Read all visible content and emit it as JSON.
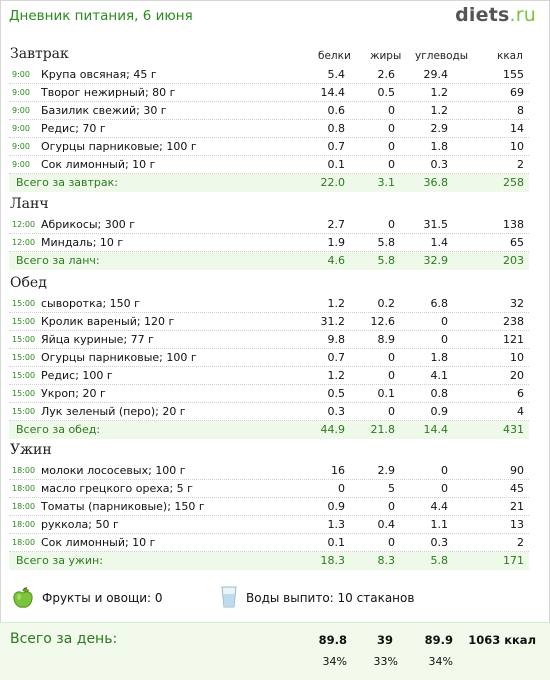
{
  "header": {
    "title": "Дневник питания, 6 июня",
    "logo_main": "diets",
    "logo_tld": ".ru"
  },
  "columns": {
    "protein": "белки",
    "fat": "жиры",
    "carbs": "углеводы",
    "kcal": "ккал"
  },
  "meals": [
    {
      "title": "Завтрак",
      "items": [
        {
          "time": "9:00",
          "name": "Крупа овсяная; 45 г",
          "protein": "5.4",
          "fat": "2.6",
          "carbs": "29.4",
          "kcal": "155"
        },
        {
          "time": "9:00",
          "name": "Творог нежирный; 80 г",
          "protein": "14.4",
          "fat": "0.5",
          "carbs": "1.2",
          "kcal": "69"
        },
        {
          "time": "9:00",
          "name": "Базилик свежий; 30 г",
          "protein": "0.6",
          "fat": "0",
          "carbs": "1.2",
          "kcal": "8"
        },
        {
          "time": "9:00",
          "name": "Редис; 70 г",
          "protein": "0.8",
          "fat": "0",
          "carbs": "2.9",
          "kcal": "14"
        },
        {
          "time": "9:00",
          "name": "Огурцы парниковые; 100 г",
          "protein": "0.7",
          "fat": "0",
          "carbs": "1.8",
          "kcal": "10"
        },
        {
          "time": "9:00",
          "name": "Сок лимонный; 10 г",
          "protein": "0.1",
          "fat": "0",
          "carbs": "0.3",
          "kcal": "2"
        }
      ],
      "total": {
        "label": "Всего за завтрак:",
        "protein": "22.0",
        "fat": "3.1",
        "carbs": "36.8",
        "kcal": "258"
      }
    },
    {
      "title": "Ланч",
      "items": [
        {
          "time": "12:00",
          "name": "Абрикосы; 300 г",
          "protein": "2.7",
          "fat": "0",
          "carbs": "31.5",
          "kcal": "138"
        },
        {
          "time": "12:00",
          "name": "Миндаль; 10 г",
          "protein": "1.9",
          "fat": "5.8",
          "carbs": "1.4",
          "kcal": "65"
        }
      ],
      "total": {
        "label": "Всего за ланч:",
        "protein": "4.6",
        "fat": "5.8",
        "carbs": "32.9",
        "kcal": "203"
      }
    },
    {
      "title": "Обед",
      "items": [
        {
          "time": "15:00",
          "name": "сыворотка; 150 г",
          "protein": "1.2",
          "fat": "0.2",
          "carbs": "6.8",
          "kcal": "32"
        },
        {
          "time": "15:00",
          "name": "Кролик вареный; 120 г",
          "protein": "31.2",
          "fat": "12.6",
          "carbs": "0",
          "kcal": "238"
        },
        {
          "time": "15:00",
          "name": "Яйца куриные; 77 г",
          "protein": "9.8",
          "fat": "8.9",
          "carbs": "0",
          "kcal": "121"
        },
        {
          "time": "15:00",
          "name": "Огурцы парниковые; 100 г",
          "protein": "0.7",
          "fat": "0",
          "carbs": "1.8",
          "kcal": "10"
        },
        {
          "time": "15:00",
          "name": "Редис; 100 г",
          "protein": "1.2",
          "fat": "0",
          "carbs": "4.1",
          "kcal": "20"
        },
        {
          "time": "15:00",
          "name": "Укроп; 20 г",
          "protein": "0.5",
          "fat": "0.1",
          "carbs": "0.8",
          "kcal": "6"
        },
        {
          "time": "15:00",
          "name": "Лук зеленый (перо); 20 г",
          "protein": "0.3",
          "fat": "0",
          "carbs": "0.9",
          "kcal": "4"
        }
      ],
      "total": {
        "label": "Всего за обед:",
        "protein": "44.9",
        "fat": "21.8",
        "carbs": "14.4",
        "kcal": "431"
      }
    },
    {
      "title": "Ужин",
      "items": [
        {
          "time": "18:00",
          "name": "молоки лососевых; 100 г",
          "protein": "16",
          "fat": "2.9",
          "carbs": "0",
          "kcal": "90"
        },
        {
          "time": "18:00",
          "name": "масло грецкого ореха; 5 г",
          "protein": "0",
          "fat": "5",
          "carbs": "0",
          "kcal": "45"
        },
        {
          "time": "18:00",
          "name": "Томаты (парниковые); 150 г",
          "protein": "0.9",
          "fat": "0",
          "carbs": "4.4",
          "kcal": "21"
        },
        {
          "time": "18:00",
          "name": "руккола; 50 г",
          "protein": "1.3",
          "fat": "0.4",
          "carbs": "1.1",
          "kcal": "13"
        },
        {
          "time": "18:00",
          "name": "Сок лимонный; 10 г",
          "protein": "0.1",
          "fat": "0",
          "carbs": "0.3",
          "kcal": "2"
        }
      ],
      "total": {
        "label": "Всего за ужин:",
        "protein": "18.3",
        "fat": "8.3",
        "carbs": "5.8",
        "kcal": "171"
      }
    }
  ],
  "extras": {
    "fruits_label": "Фрукты и овощи: 0",
    "fruits_icon": "green-apple-icon",
    "water_label": "Воды выпито: 10 стаканов",
    "water_icon": "water-glass-icon"
  },
  "day_total": {
    "label": "Всего за день:",
    "protein": "89.8",
    "fat": "39",
    "carbs": "89.9",
    "kcal": "1063 ккал",
    "protein_pct": "34%",
    "fat_pct": "33%",
    "carbs_pct": "34%"
  },
  "colors": {
    "accent_green": "#2b8a1e",
    "total_bg": "#eef9e9"
  }
}
